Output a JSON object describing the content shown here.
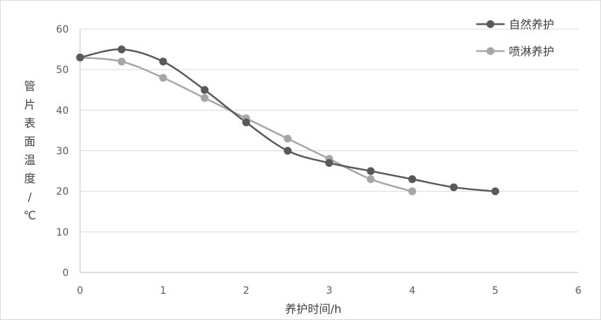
{
  "chart_data": {
    "type": "line",
    "title": "",
    "xlabel": "养护时间/h",
    "ylabel_chars": [
      "管",
      "片",
      "表",
      "面",
      "温",
      "度",
      "/",
      "℃"
    ],
    "xlim": [
      0,
      6
    ],
    "ylim": [
      0,
      60
    ],
    "xticks": [
      0,
      1,
      2,
      3,
      4,
      5,
      6
    ],
    "yticks": [
      0,
      10,
      20,
      30,
      40,
      50,
      60
    ],
    "grid": true,
    "legend_position": "top-right",
    "series": [
      {
        "name": "自然养护",
        "color": "#595959",
        "x": [
          0,
          0.5,
          1,
          1.5,
          2,
          2.5,
          3,
          3.5,
          4,
          4.5,
          5
        ],
        "y": [
          53,
          55,
          52,
          45,
          37,
          30,
          27,
          25,
          23,
          21,
          20
        ]
      },
      {
        "name": "喷淋养护",
        "color": "#a6a6a6",
        "x": [
          0,
          0.5,
          1,
          1.5,
          2,
          2.5,
          3,
          3.5,
          4
        ],
        "y": [
          53,
          52,
          48,
          43,
          38,
          33,
          28,
          23,
          20
        ]
      }
    ]
  }
}
